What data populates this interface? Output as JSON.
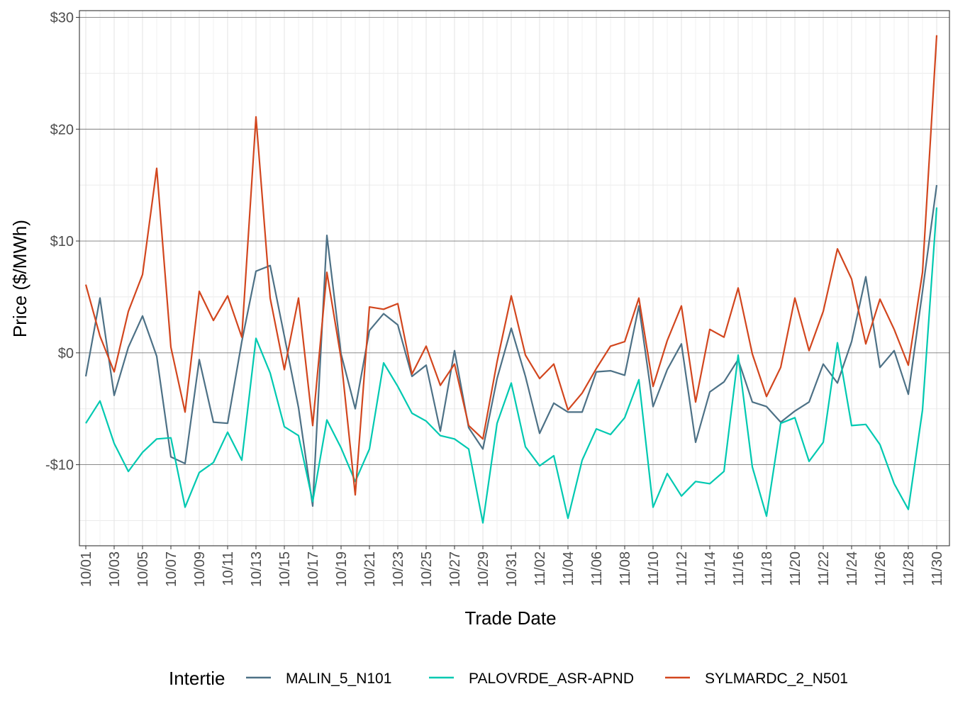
{
  "chart_data": {
    "type": "line",
    "xlabel": "Trade Date",
    "ylabel": "Price ($/MWh)",
    "ylim": [
      -17.25,
      30.6
    ],
    "y_ticks": [
      30,
      20,
      10,
      0,
      -10
    ],
    "y_tick_labels": [
      "$30",
      "$20",
      "$10",
      "$0",
      "-$10"
    ],
    "grid": true,
    "legend": {
      "title": "Intertie",
      "position": "bottom"
    },
    "x": [
      "10/01",
      "10/02",
      "10/03",
      "10/04",
      "10/05",
      "10/06",
      "10/07",
      "10/08",
      "10/09",
      "10/10",
      "10/11",
      "10/12",
      "10/13",
      "10/14",
      "10/15",
      "10/16",
      "10/17",
      "10/18",
      "10/19",
      "10/20",
      "10/21",
      "10/22",
      "10/23",
      "10/24",
      "10/25",
      "10/26",
      "10/27",
      "10/28",
      "10/29",
      "10/30",
      "10/31",
      "11/01",
      "11/02",
      "11/03",
      "11/04",
      "11/05",
      "11/06",
      "11/07",
      "11/08",
      "11/09",
      "11/10",
      "11/11",
      "11/12",
      "11/13",
      "11/14",
      "11/15",
      "11/16",
      "11/17",
      "11/18",
      "11/19",
      "11/20",
      "11/21",
      "11/22",
      "11/23",
      "11/24",
      "11/25",
      "11/26",
      "11/27",
      "11/28",
      "11/29",
      "11/30"
    ],
    "x_tick_labels": [
      "10/01",
      "10/03",
      "10/05",
      "10/07",
      "10/09",
      "10/11",
      "10/13",
      "10/15",
      "10/17",
      "10/19",
      "10/21",
      "10/23",
      "10/25",
      "10/27",
      "10/29",
      "10/31",
      "11/02",
      "11/04",
      "11/06",
      "11/08",
      "11/10",
      "11/12",
      "11/14",
      "11/16",
      "11/18",
      "11/20",
      "11/22",
      "11/24",
      "11/26",
      "11/28",
      "11/30"
    ],
    "series": [
      {
        "name": "MALIN_5_N101",
        "color": "#4D7186",
        "values": [
          -2.1,
          4.9,
          -3.8,
          0.5,
          3.3,
          -0.3,
          -9.3,
          -9.9,
          -0.6,
          -6.2,
          -6.3,
          1.0,
          7.3,
          7.8,
          1.5,
          -4.9,
          -13.7,
          10.5,
          -0.1,
          -5.0,
          2.0,
          3.5,
          2.5,
          -2.1,
          -1.1,
          -7.0,
          0.2,
          -6.7,
          -8.6,
          -2.3,
          2.2,
          -2.1,
          -7.2,
          -4.5,
          -5.3,
          -5.3,
          -1.7,
          -1.6,
          -2.0,
          4.2,
          -4.8,
          -1.5,
          0.8,
          -8.0,
          -3.5,
          -2.6,
          -0.6,
          -4.4,
          -4.8,
          -6.2,
          -5.2,
          -4.4,
          -1.0,
          -2.7,
          1.0,
          6.8,
          -1.3,
          0.2,
          -3.7,
          5.5,
          15.0
        ]
      },
      {
        "name": "PALOVRDE_ASR-APND",
        "color": "#00C9B1",
        "values": [
          -6.3,
          -4.3,
          -8.1,
          -10.6,
          -8.9,
          -7.7,
          -7.6,
          -13.8,
          -10.7,
          -9.8,
          -7.1,
          -9.6,
          1.3,
          -1.8,
          -6.6,
          -7.4,
          -13.3,
          -6.0,
          -8.5,
          -11.5,
          -8.6,
          -0.9,
          -3.0,
          -5.4,
          -6.1,
          -7.4,
          -7.7,
          -8.6,
          -15.2,
          -6.3,
          -2.7,
          -8.4,
          -10.1,
          -9.2,
          -14.8,
          -9.6,
          -6.8,
          -7.3,
          -5.8,
          -2.4,
          -13.8,
          -10.8,
          -12.8,
          -11.5,
          -11.7,
          -10.6,
          -0.2,
          -10.2,
          -14.6,
          -6.3,
          -5.8,
          -9.7,
          -8.0,
          0.9,
          -6.5,
          -6.4,
          -8.2,
          -11.7,
          -14.0,
          -5.1,
          13.0
        ]
      },
      {
        "name": "SYLMARDC_2_N501",
        "color": "#D2461E",
        "values": [
          6.1,
          1.5,
          -1.7,
          3.7,
          7.0,
          16.5,
          0.5,
          -5.3,
          5.5,
          2.9,
          5.1,
          1.4,
          21.1,
          4.9,
          -1.5,
          4.9,
          -6.5,
          7.2,
          -0.5,
          -12.7,
          4.1,
          3.9,
          4.4,
          -1.9,
          0.6,
          -2.9,
          -1.0,
          -6.5,
          -7.7,
          -0.8,
          5.1,
          -0.2,
          -2.3,
          -1.0,
          -5.1,
          -3.6,
          -1.4,
          0.6,
          1.0,
          4.9,
          -3.0,
          1.1,
          4.2,
          -4.4,
          2.1,
          1.4,
          5.8,
          -0.1,
          -3.9,
          -1.3,
          4.9,
          0.2,
          3.7,
          9.3,
          6.6,
          0.8,
          4.8,
          2.1,
          -1.1,
          7.2,
          28.4
        ]
      }
    ]
  }
}
